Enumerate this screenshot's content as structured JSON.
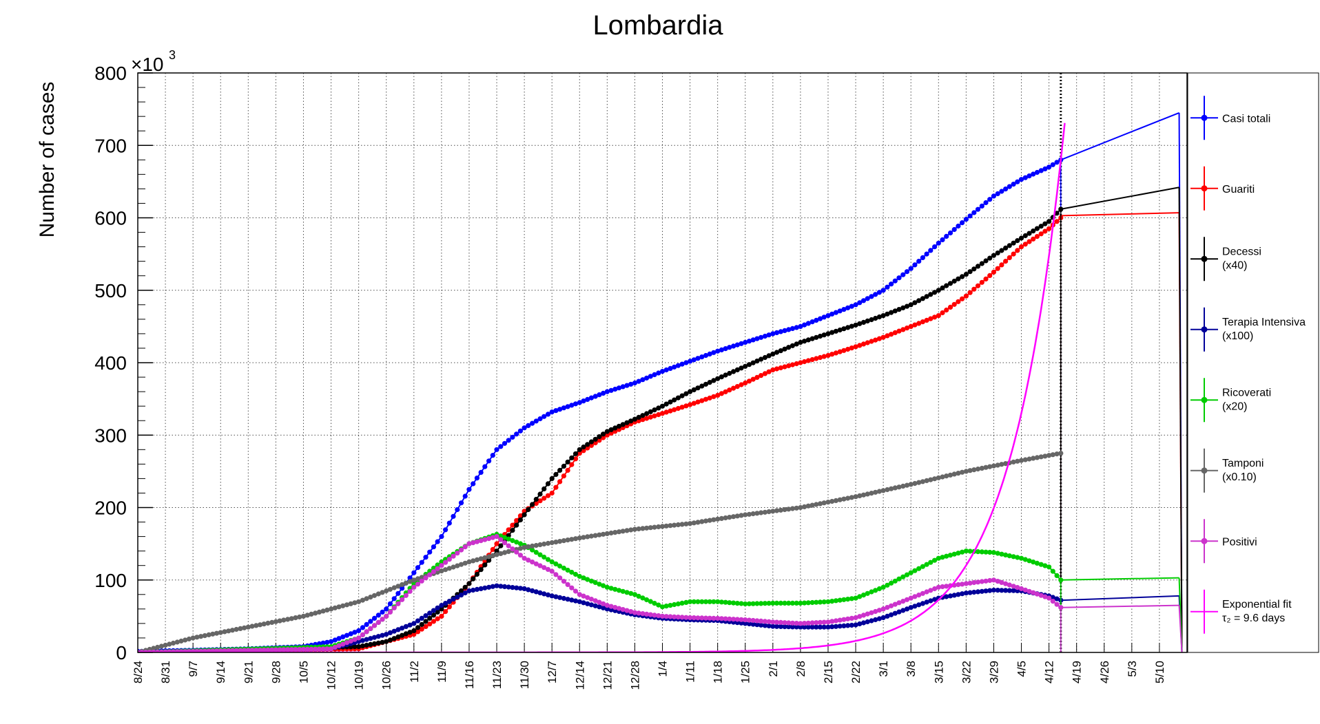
{
  "chart_data": {
    "type": "line",
    "title": "Lombardia",
    "ylabel": "Number of cases",
    "y_exponent_label": "×10",
    "y_exponent_power": "3",
    "ylim": [
      0,
      800
    ],
    "yticks": [
      "0",
      "100",
      "200",
      "300",
      "400",
      "500",
      "600",
      "700",
      "800"
    ],
    "xlim": [
      "2020-08-24",
      "2021-05-17"
    ],
    "xticks": [
      {
        "date": "2020-08-24",
        "label": "8/24"
      },
      {
        "date": "2020-08-31",
        "label": "8/31"
      },
      {
        "date": "2020-09-07",
        "label": "9/7"
      },
      {
        "date": "2020-09-14",
        "label": "9/14"
      },
      {
        "date": "2020-09-21",
        "label": "9/21"
      },
      {
        "date": "2020-09-28",
        "label": "9/28"
      },
      {
        "date": "2020-10-05",
        "label": "10/5"
      },
      {
        "date": "2020-10-12",
        "label": "10/12"
      },
      {
        "date": "2020-10-19",
        "label": "10/19"
      },
      {
        "date": "2020-10-26",
        "label": "10/26"
      },
      {
        "date": "2020-11-02",
        "label": "11/2"
      },
      {
        "date": "2020-11-09",
        "label": "11/9"
      },
      {
        "date": "2020-11-16",
        "label": "11/16"
      },
      {
        "date": "2020-11-23",
        "label": "11/23"
      },
      {
        "date": "2020-11-30",
        "label": "11/30"
      },
      {
        "date": "2020-12-07",
        "label": "12/7"
      },
      {
        "date": "2020-12-14",
        "label": "12/14"
      },
      {
        "date": "2020-12-21",
        "label": "12/21"
      },
      {
        "date": "2020-12-28",
        "label": "12/28"
      },
      {
        "date": "2021-01-04",
        "label": "1/4"
      },
      {
        "date": "2021-01-11",
        "label": "1/11"
      },
      {
        "date": "2021-01-18",
        "label": "1/18"
      },
      {
        "date": "2021-01-25",
        "label": "1/25"
      },
      {
        "date": "2021-02-01",
        "label": "2/1"
      },
      {
        "date": "2021-02-08",
        "label": "2/8"
      },
      {
        "date": "2021-02-15",
        "label": "2/15"
      },
      {
        "date": "2021-02-22",
        "label": "2/22"
      },
      {
        "date": "2021-03-01",
        "label": "3/1"
      },
      {
        "date": "2021-03-08",
        "label": "3/8"
      },
      {
        "date": "2021-03-15",
        "label": "3/15"
      },
      {
        "date": "2021-03-22",
        "label": "3/22"
      },
      {
        "date": "2021-03-29",
        "label": "3/29"
      },
      {
        "date": "2021-04-05",
        "label": "4/5"
      },
      {
        "date": "2021-04-12",
        "label": "4/12"
      },
      {
        "date": "2021-04-19",
        "label": "4/19"
      },
      {
        "date": "2021-04-26",
        "label": "4/26"
      },
      {
        "date": "2021-05-03",
        "label": "5/3"
      },
      {
        "date": "2021-05-10",
        "label": "5/10"
      }
    ],
    "grid": true,
    "marker_vline_date": "2021-04-15",
    "legend_position": "right",
    "series": [
      {
        "name": "Casi totali",
        "color": "#0000ff",
        "markers": true,
        "points": [
          [
            "2020-08-24",
            1.5
          ],
          [
            "2020-09-07",
            3
          ],
          [
            "2020-09-21",
            5
          ],
          [
            "2020-10-05",
            8
          ],
          [
            "2020-10-12",
            15
          ],
          [
            "2020-10-19",
            30
          ],
          [
            "2020-10-26",
            60
          ],
          [
            "2020-11-02",
            110
          ],
          [
            "2020-11-09",
            160
          ],
          [
            "2020-11-16",
            225
          ],
          [
            "2020-11-23",
            280
          ],
          [
            "2020-11-30",
            310
          ],
          [
            "2020-12-07",
            332
          ],
          [
            "2020-12-14",
            345
          ],
          [
            "2020-12-21",
            360
          ],
          [
            "2020-12-28",
            372
          ],
          [
            "2021-01-04",
            388
          ],
          [
            "2021-01-11",
            402
          ],
          [
            "2021-01-18",
            416
          ],
          [
            "2021-01-25",
            428
          ],
          [
            "2021-02-01",
            440
          ],
          [
            "2021-02-08",
            450
          ],
          [
            "2021-02-15",
            465
          ],
          [
            "2021-02-22",
            480
          ],
          [
            "2021-03-01",
            500
          ],
          [
            "2021-03-08",
            530
          ],
          [
            "2021-03-15",
            565
          ],
          [
            "2021-03-22",
            598
          ],
          [
            "2021-03-29",
            630
          ],
          [
            "2021-04-05",
            653
          ],
          [
            "2021-04-12",
            670
          ],
          [
            "2021-04-15",
            680
          ]
        ],
        "extension": [
          [
            "2021-04-15",
            680
          ],
          [
            "2021-05-15",
            745
          ]
        ]
      },
      {
        "name": "Guariti",
        "color": "#ff0000",
        "markers": true,
        "points": [
          [
            "2020-08-24",
            0
          ],
          [
            "2020-10-19",
            5
          ],
          [
            "2020-10-26",
            15
          ],
          [
            "2020-11-02",
            25
          ],
          [
            "2020-11-09",
            50
          ],
          [
            "2020-11-16",
            95
          ],
          [
            "2020-11-23",
            150
          ],
          [
            "2020-11-30",
            195
          ],
          [
            "2020-12-07",
            220
          ],
          [
            "2020-12-14",
            275
          ],
          [
            "2020-12-21",
            300
          ],
          [
            "2020-12-28",
            318
          ],
          [
            "2021-01-04",
            330
          ],
          [
            "2021-01-11",
            342
          ],
          [
            "2021-01-18",
            355
          ],
          [
            "2021-01-25",
            372
          ],
          [
            "2021-02-01",
            390
          ],
          [
            "2021-02-08",
            400
          ],
          [
            "2021-02-15",
            410
          ],
          [
            "2021-02-22",
            422
          ],
          [
            "2021-03-01",
            435
          ],
          [
            "2021-03-08",
            450
          ],
          [
            "2021-03-15",
            465
          ],
          [
            "2021-03-22",
            492
          ],
          [
            "2021-03-29",
            525
          ],
          [
            "2021-04-05",
            560
          ],
          [
            "2021-04-12",
            585
          ],
          [
            "2021-04-15",
            600
          ]
        ],
        "extension": [
          [
            "2021-04-15",
            603
          ],
          [
            "2021-05-15",
            607
          ]
        ]
      },
      {
        "name": "Decessi",
        "name_line2": "(x40)",
        "color": "#000000",
        "markers": true,
        "points": [
          [
            "2020-08-24",
            0
          ],
          [
            "2020-10-19",
            8
          ],
          [
            "2020-10-26",
            15
          ],
          [
            "2020-11-02",
            30
          ],
          [
            "2020-11-09",
            60
          ],
          [
            "2020-11-16",
            95
          ],
          [
            "2020-11-23",
            140
          ],
          [
            "2020-11-30",
            190
          ],
          [
            "2020-12-07",
            240
          ],
          [
            "2020-12-14",
            280
          ],
          [
            "2020-12-21",
            305
          ],
          [
            "2020-12-28",
            322
          ],
          [
            "2021-01-04",
            340
          ],
          [
            "2021-01-11",
            360
          ],
          [
            "2021-01-18",
            378
          ],
          [
            "2021-01-25",
            395
          ],
          [
            "2021-02-01",
            412
          ],
          [
            "2021-02-08",
            428
          ],
          [
            "2021-02-15",
            440
          ],
          [
            "2021-02-22",
            452
          ],
          [
            "2021-03-01",
            465
          ],
          [
            "2021-03-08",
            480
          ],
          [
            "2021-03-15",
            500
          ],
          [
            "2021-03-22",
            522
          ],
          [
            "2021-03-29",
            548
          ],
          [
            "2021-04-05",
            572
          ],
          [
            "2021-04-12",
            595
          ],
          [
            "2021-04-15",
            612
          ]
        ],
        "extension": [
          [
            "2021-04-15",
            612
          ],
          [
            "2021-05-15",
            642
          ]
        ]
      },
      {
        "name": "Terapia Intensiva",
        "name_line2": "(x100)",
        "color": "#000099",
        "markers": true,
        "points": [
          [
            "2020-08-24",
            0
          ],
          [
            "2020-10-12",
            5
          ],
          [
            "2020-10-26",
            25
          ],
          [
            "2020-11-02",
            40
          ],
          [
            "2020-11-09",
            65
          ],
          [
            "2020-11-16",
            85
          ],
          [
            "2020-11-23",
            92
          ],
          [
            "2020-11-30",
            88
          ],
          [
            "2020-12-07",
            78
          ],
          [
            "2020-12-14",
            70
          ],
          [
            "2020-12-21",
            60
          ],
          [
            "2020-12-28",
            52
          ],
          [
            "2021-01-04",
            47
          ],
          [
            "2021-01-11",
            45
          ],
          [
            "2021-01-18",
            44
          ],
          [
            "2021-01-25",
            40
          ],
          [
            "2021-02-01",
            36
          ],
          [
            "2021-02-08",
            35
          ],
          [
            "2021-02-15",
            35
          ],
          [
            "2021-02-22",
            38
          ],
          [
            "2021-03-01",
            48
          ],
          [
            "2021-03-08",
            62
          ],
          [
            "2021-03-15",
            75
          ],
          [
            "2021-03-22",
            82
          ],
          [
            "2021-03-29",
            86
          ],
          [
            "2021-04-05",
            85
          ],
          [
            "2021-04-12",
            78
          ],
          [
            "2021-04-15",
            72
          ]
        ],
        "extension": [
          [
            "2021-04-15",
            72
          ],
          [
            "2021-05-15",
            78
          ]
        ]
      },
      {
        "name": "Ricoverati",
        "name_line2": "(x20)",
        "color": "#00cc00",
        "markers": true,
        "points": [
          [
            "2020-08-24",
            0
          ],
          [
            "2020-10-12",
            8
          ],
          [
            "2020-10-19",
            20
          ],
          [
            "2020-10-26",
            50
          ],
          [
            "2020-11-02",
            95
          ],
          [
            "2020-11-09",
            125
          ],
          [
            "2020-11-16",
            150
          ],
          [
            "2020-11-23",
            163
          ],
          [
            "2020-11-30",
            148
          ],
          [
            "2020-12-07",
            125
          ],
          [
            "2020-12-14",
            105
          ],
          [
            "2020-12-21",
            90
          ],
          [
            "2020-12-28",
            80
          ],
          [
            "2021-01-04",
            63
          ],
          [
            "2021-01-11",
            70
          ],
          [
            "2021-01-18",
            70
          ],
          [
            "2021-01-25",
            67
          ],
          [
            "2021-02-01",
            68
          ],
          [
            "2021-02-08",
            68
          ],
          [
            "2021-02-15",
            70
          ],
          [
            "2021-02-22",
            75
          ],
          [
            "2021-03-01",
            90
          ],
          [
            "2021-03-08",
            110
          ],
          [
            "2021-03-15",
            130
          ],
          [
            "2021-03-22",
            140
          ],
          [
            "2021-03-29",
            138
          ],
          [
            "2021-04-05",
            130
          ],
          [
            "2021-04-12",
            118
          ],
          [
            "2021-04-15",
            100
          ]
        ],
        "extension": [
          [
            "2021-04-15",
            100
          ],
          [
            "2021-05-15",
            103
          ]
        ]
      },
      {
        "name": "Tamponi",
        "name_line2": "(x0.10)",
        "color": "#666666",
        "markers": true,
        "points": [
          [
            "2020-08-24",
            0
          ],
          [
            "2020-09-07",
            20
          ],
          [
            "2020-09-21",
            35
          ],
          [
            "2020-10-05",
            50
          ],
          [
            "2020-10-19",
            70
          ],
          [
            "2020-11-02",
            100
          ],
          [
            "2020-11-16",
            125
          ],
          [
            "2020-11-30",
            145
          ],
          [
            "2020-12-14",
            158
          ],
          [
            "2020-12-28",
            170
          ],
          [
            "2021-01-11",
            178
          ],
          [
            "2021-01-25",
            190
          ],
          [
            "2021-02-08",
            200
          ],
          [
            "2021-02-22",
            215
          ],
          [
            "2021-03-08",
            232
          ],
          [
            "2021-03-22",
            250
          ],
          [
            "2021-04-05",
            265
          ],
          [
            "2021-04-15",
            275
          ]
        ]
      },
      {
        "name": "Positivi",
        "color": "#cc33cc",
        "markers": true,
        "points": [
          [
            "2020-08-24",
            0
          ],
          [
            "2020-10-12",
            5
          ],
          [
            "2020-10-19",
            20
          ],
          [
            "2020-10-26",
            50
          ],
          [
            "2020-11-02",
            90
          ],
          [
            "2020-11-09",
            120
          ],
          [
            "2020-11-16",
            150
          ],
          [
            "2020-11-23",
            160
          ],
          [
            "2020-11-30",
            130
          ],
          [
            "2020-12-07",
            112
          ],
          [
            "2020-12-14",
            80
          ],
          [
            "2020-12-21",
            65
          ],
          [
            "2020-12-28",
            55
          ],
          [
            "2021-01-04",
            50
          ],
          [
            "2021-01-11",
            48
          ],
          [
            "2021-01-18",
            47
          ],
          [
            "2021-01-25",
            45
          ],
          [
            "2021-02-01",
            42
          ],
          [
            "2021-02-08",
            40
          ],
          [
            "2021-02-15",
            42
          ],
          [
            "2021-02-22",
            48
          ],
          [
            "2021-03-01",
            60
          ],
          [
            "2021-03-08",
            75
          ],
          [
            "2021-03-15",
            90
          ],
          [
            "2021-03-22",
            95
          ],
          [
            "2021-03-29",
            100
          ],
          [
            "2021-04-05",
            88
          ],
          [
            "2021-04-12",
            75
          ],
          [
            "2021-04-15",
            62
          ]
        ],
        "extension": [
          [
            "2021-04-15",
            62
          ],
          [
            "2021-05-15",
            65
          ]
        ]
      },
      {
        "name": "Exponential fit",
        "name_line2": "τ₂ = 9.6 days",
        "color": "#ff00ff",
        "markers": false,
        "function": {
          "form": "exponential",
          "doubling_time_days": 9.6,
          "value_at_anchor": 680,
          "anchor_date": "2021-04-15",
          "end_date": "2021-04-16"
        }
      }
    ]
  }
}
